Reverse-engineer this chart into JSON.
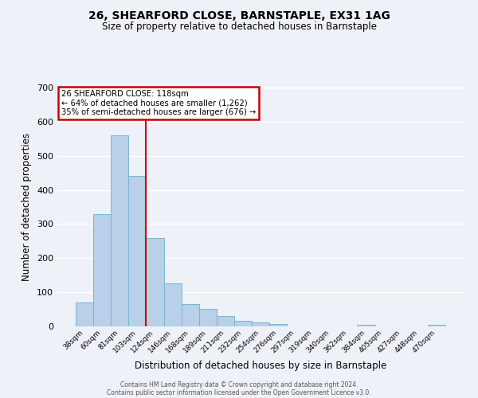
{
  "title": "26, SHEARFORD CLOSE, BARNSTAPLE, EX31 1AG",
  "subtitle": "Size of property relative to detached houses in Barnstaple",
  "xlabel": "Distribution of detached houses by size in Barnstaple",
  "ylabel": "Number of detached properties",
  "categories": [
    "38sqm",
    "60sqm",
    "81sqm",
    "103sqm",
    "124sqm",
    "146sqm",
    "168sqm",
    "189sqm",
    "211sqm",
    "232sqm",
    "254sqm",
    "276sqm",
    "297sqm",
    "319sqm",
    "340sqm",
    "362sqm",
    "384sqm",
    "405sqm",
    "427sqm",
    "448sqm",
    "470sqm"
  ],
  "values": [
    70,
    330,
    560,
    440,
    260,
    125,
    65,
    52,
    30,
    17,
    12,
    6,
    1,
    0,
    0,
    0,
    5,
    0,
    0,
    0,
    5
  ],
  "bar_color": "#b8d0e8",
  "bar_edge_color": "#7ab4d4",
  "vline_color": "#cc0000",
  "vline_position": 3.5,
  "annotation_title": "26 SHEARFORD CLOSE: 118sqm",
  "annotation_line1": "← 64% of detached houses are smaller (1,262)",
  "annotation_line2": "35% of semi-detached houses are larger (676) →",
  "annotation_box_color": "#cc0000",
  "ylim": [
    0,
    700
  ],
  "yticks": [
    0,
    100,
    200,
    300,
    400,
    500,
    600,
    700
  ],
  "background_color": "#eef2f8",
  "grid_color": "#ffffff",
  "footer_line1": "Contains HM Land Registry data © Crown copyright and database right 2024.",
  "footer_line2": "Contains public sector information licensed under the Open Government Licence v3.0."
}
